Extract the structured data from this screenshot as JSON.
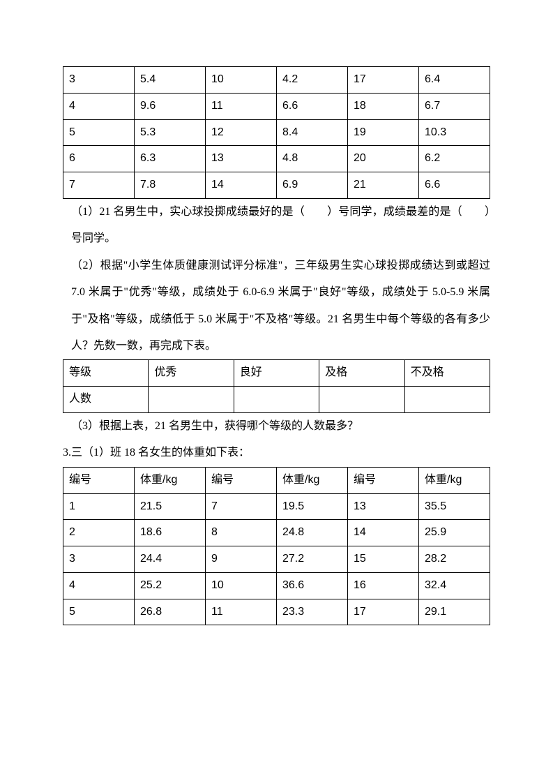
{
  "table1": {
    "rows": [
      [
        "3",
        "5.4",
        "10",
        "4.2",
        "17",
        "6.4"
      ],
      [
        "4",
        "9.6",
        "11",
        "6.6",
        "18",
        "6.7"
      ],
      [
        "5",
        "5.3",
        "12",
        "8.4",
        "19",
        "10.3"
      ],
      [
        "6",
        "6.3",
        "13",
        "4.8",
        "20",
        "6.2"
      ],
      [
        "7",
        "7.8",
        "14",
        "6.9",
        "21",
        "6.6"
      ]
    ]
  },
  "q1": "（1）21 名男生中，实心球投掷成绩最好的是（　　）号同学，成绩最差的是（　　）号同学。",
  "q2": "（2）根据\"小学生体质健康测试评分标准\"，三年级男生实心球投掷成绩达到或超过 7.0 米属于\"优秀\"等级，成绩处于 6.0-6.9 米属于\"良好\"等级，成绩处于 5.0-5.9 米属于\"及格\"等级，成绩低于 5.0 米属于\"不及格\"等级。21 名男生中每个等级的各有多少人？先数一数，再完成下表。",
  "table2": {
    "row1": [
      "等级",
      "优秀",
      "良好",
      "及格",
      "不及格"
    ],
    "row2": [
      "人数",
      "",
      "",
      "",
      ""
    ]
  },
  "q3": "（3）根据上表，21 名男生中，获得哪个等级的人数最多？",
  "p3": "3.三（1）班 18 名女生的体重如下表：",
  "table3": {
    "header": [
      "编号",
      "体重/kg",
      "编号",
      "体重/kg",
      "编号",
      "体重/kg"
    ],
    "rows": [
      [
        "1",
        "21.5",
        "7",
        "19.5",
        "13",
        "35.5"
      ],
      [
        "2",
        "18.6",
        "8",
        "24.8",
        "14",
        "25.9"
      ],
      [
        "3",
        "24.4",
        "9",
        "27.2",
        "15",
        "28.2"
      ],
      [
        "4",
        "25.2",
        "10",
        "36.6",
        "16",
        "32.4"
      ],
      [
        "5",
        "26.8",
        "11",
        "23.3",
        "17",
        "29.1"
      ]
    ]
  }
}
